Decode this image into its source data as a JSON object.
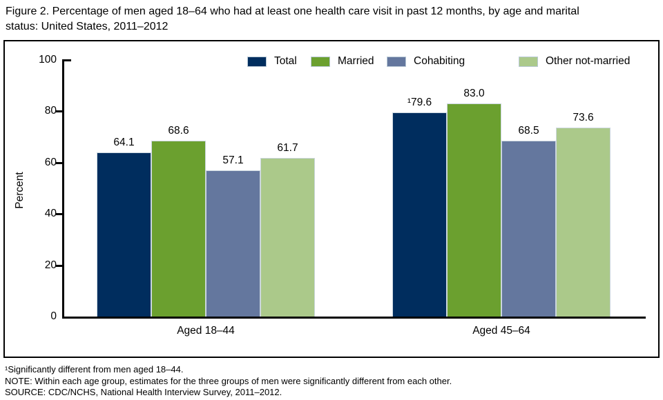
{
  "title": {
    "lines": [
      "Figure 2. Percentage of men aged 18–64 who had at least one health care visit in past 12 months, by age and marital",
      "status: United States, 2011–2012"
    ]
  },
  "chart_data": {
    "type": "bar",
    "title": "Figure 2. Percentage of men aged 18–64 who had at least one health care visit in past 12 months, by age and marital status: United States, 2011–2012",
    "ylabel": "Percent",
    "xlabel": "",
    "ylim": [
      0,
      100
    ],
    "yticks": [
      0,
      20,
      40,
      60,
      80,
      100
    ],
    "grid": false,
    "legend_position": "top",
    "categories": [
      "Aged 18–44",
      "Aged 45–64"
    ],
    "series": [
      {
        "name": "Total",
        "color": "#002d5e",
        "values": [
          64.1,
          79.6
        ],
        "value_labels": [
          "64.1",
          "¹79.6"
        ]
      },
      {
        "name": "Married",
        "color": "#6ba02f",
        "values": [
          68.6,
          83.0
        ],
        "value_labels": [
          "68.6",
          "83.0"
        ]
      },
      {
        "name": "Cohabiting",
        "color": "#64779e",
        "values": [
          57.1,
          68.5
        ],
        "value_labels": [
          "57.1",
          "68.5"
        ]
      },
      {
        "name": "Other not-married",
        "color": "#abc98a",
        "values": [
          61.7,
          73.6
        ],
        "value_labels": [
          "61.7",
          "73.6"
        ]
      }
    ]
  },
  "footnotes": [
    "¹Significantly different from men aged 18–44.",
    "NOTE: Within each age group, estimates for the three groups of men were significantly different from each other.",
    "SOURCE: CDC/NCHS, National Health Interview Survey, 2011–2012."
  ]
}
